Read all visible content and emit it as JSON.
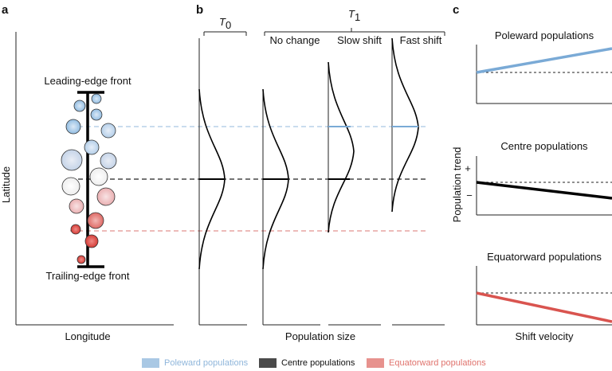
{
  "panels": {
    "a": "a",
    "b": "b",
    "c": "c"
  },
  "panel_a": {
    "y_axis_label": "Latitude",
    "x_axis_label": "Longitude",
    "leading_edge": "Leading-edge front",
    "trailing_edge": "Trailing-edge front"
  },
  "panel_b": {
    "t0": "T",
    "t0_sub": "0",
    "t1": "T",
    "t1_sub": "1",
    "col_no_change": "No change",
    "col_slow_shift": "Slow shift",
    "col_fast_shift": "Fast shift",
    "x_axis_label": "Population size"
  },
  "panel_c": {
    "title_poleward": "Poleward populations",
    "title_centre": "Centre populations",
    "title_equatorward": "Equatorward populations",
    "y_axis_label": "Population trend",
    "plus": "+",
    "minus": "−",
    "x_axis_label": "Shift velocity"
  },
  "legend": {
    "items": [
      {
        "label": "Poleward populations",
        "color": "#a9c8e4",
        "text_color": "#8fb6db"
      },
      {
        "label": "Centre populations",
        "color": "#4a4a4a",
        "text_color": "#111111"
      },
      {
        "label": "Equatorward populations",
        "color": "#e7928e",
        "text_color": "#e0736d"
      }
    ]
  },
  "colors": {
    "poleward": "#7aaad6",
    "centre": "#111111",
    "equatorward": "#d9544f"
  }
}
